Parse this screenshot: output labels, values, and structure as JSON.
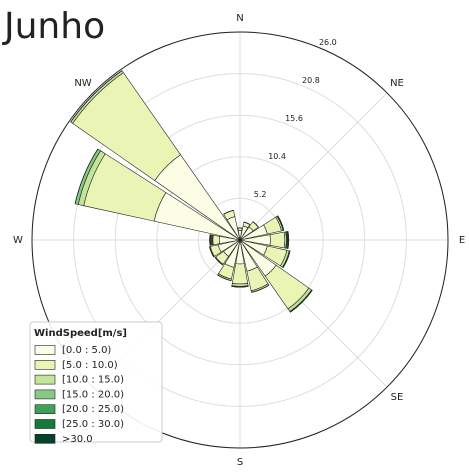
{
  "chart_data": {
    "type": "windrose",
    "title": "Junho",
    "categories": [
      "N",
      null,
      "NE",
      null,
      "E",
      null,
      "SE",
      null,
      "S",
      null,
      null,
      null,
      "W",
      null,
      "NW",
      null
    ],
    "ylim": [
      0,
      26
    ],
    "yticks": [
      5.2,
      10.4,
      15.6,
      20.8,
      {
        "value": 26,
        "label": "26.0"
      }
    ],
    "grid": true,
    "legend_title": "WindSpeed[m/s]",
    "legend": "lower left",
    "series": [
      {
        "name": "[0.0 : 5.0)",
        "color": "#fbfde4",
        "values": [
          1.2,
          1.8,
          2.0,
          3.5,
          3.8,
          3.5,
          5.5,
          4.0,
          3.0,
          3.5,
          2.5,
          2.8,
          2.6,
          11.0,
          13.0,
          3.0
        ]
      },
      {
        "name": "[5.0 : 10.0)",
        "color": "#eaf5b5",
        "values": [
          0.3,
          0.5,
          0.8,
          1.8,
          1.8,
          2.5,
          5.0,
          2.5,
          2.5,
          1.5,
          1.2,
          1.0,
          0.8,
          9.0,
          12.5,
          0.8
        ]
      },
      {
        "name": "[10.0 : 15.0)",
        "color": "#c2e59a",
        "values": [
          0,
          0,
          0,
          0.2,
          0.2,
          0.3,
          0.4,
          0.2,
          0.3,
          0.2,
          0.1,
          0.1,
          0.1,
          0.7,
          0.3,
          0
        ]
      },
      {
        "name": "[15.0 : 20.0)",
        "color": "#86c983",
        "values": [
          0,
          0,
          0,
          0.1,
          0.1,
          0.1,
          0.1,
          0,
          0.1,
          0,
          0,
          0,
          0.1,
          0.4,
          0,
          0
        ]
      },
      {
        "name": "[20.0 : 25.0)",
        "color": "#3fa05a",
        "values": [
          0,
          0,
          0,
          0,
          0.1,
          0,
          0,
          0,
          0,
          0,
          0,
          0,
          0.1,
          0,
          0,
          0
        ]
      },
      {
        "name": "[25.0 : 30.0)",
        "color": "#137a3b",
        "values": [
          0,
          0,
          0,
          0,
          0.1,
          0,
          0,
          0,
          0,
          0,
          0,
          0,
          0.1,
          0,
          0,
          0
        ]
      },
      {
        "name": ">30.0",
        "color": "#004529",
        "values": [
          0,
          0,
          0,
          0,
          0,
          0,
          0,
          0,
          0,
          0,
          0,
          0,
          0,
          0,
          0,
          0
        ]
      }
    ]
  }
}
